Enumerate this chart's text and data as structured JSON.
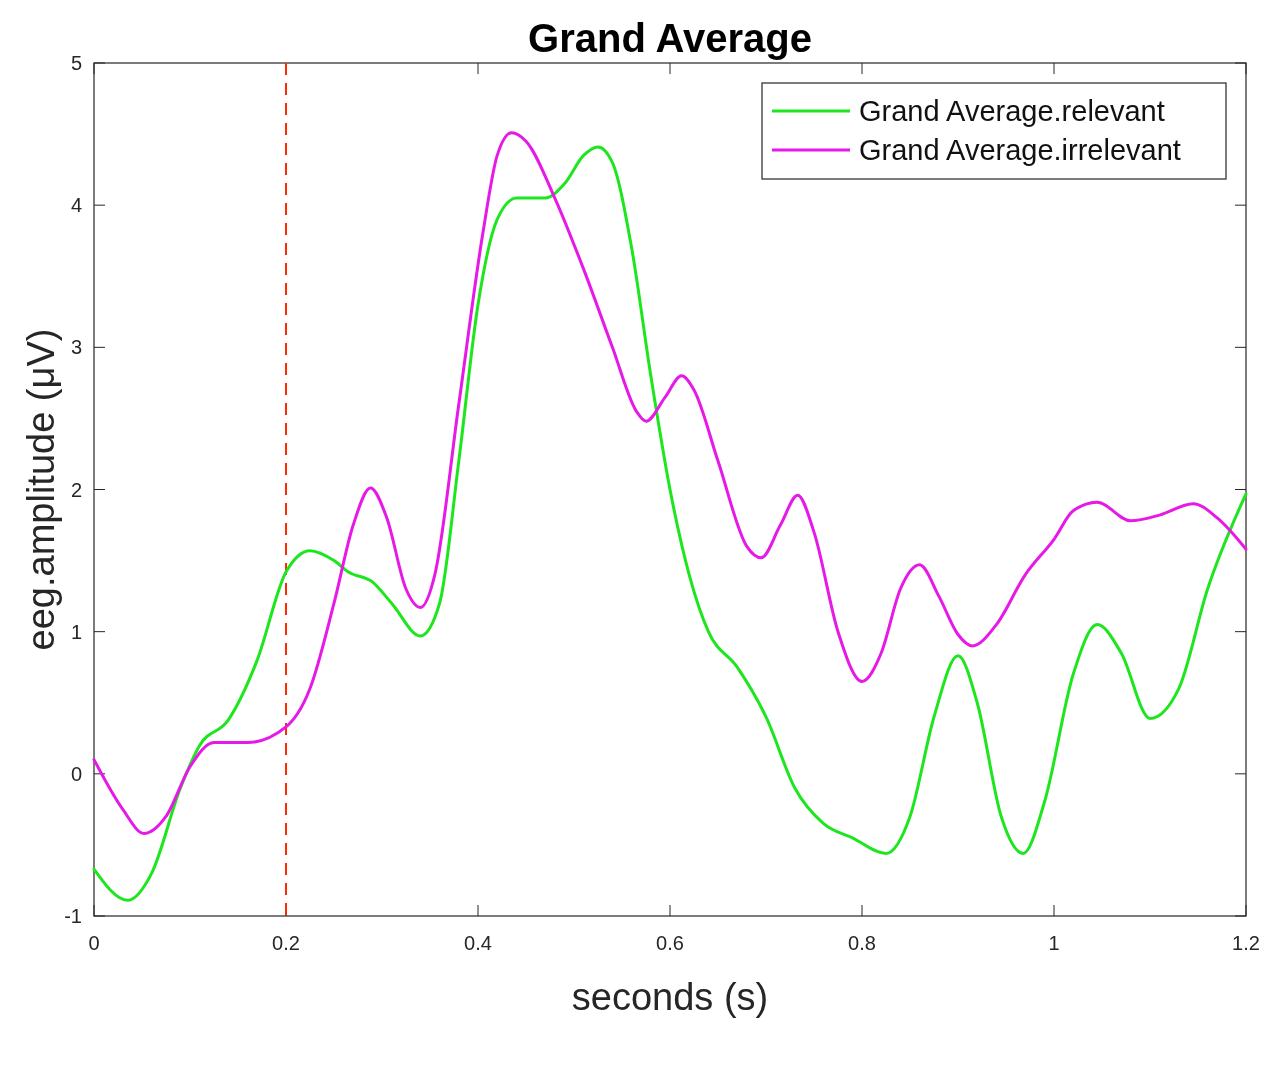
{
  "chart_data": {
    "type": "line",
    "title": "Grand Average",
    "xlabel": "seconds (s)",
    "ylabel": "eeg.amplitude (μV)",
    "xlim": [
      0,
      1.2
    ],
    "xticks": [
      0,
      0.2,
      0.4,
      0.6,
      0.8,
      1,
      1.2
    ],
    "ylim": [
      -1,
      5
    ],
    "yticks": [
      -1,
      0,
      1,
      2,
      3,
      4,
      5
    ],
    "grid": false,
    "legend": "top right",
    "line_style": "solid",
    "marker": "none",
    "ref_lines": [
      {
        "axis": "x",
        "value": 0.2,
        "color": "#ff2a00",
        "line_style": "dashed"
      }
    ],
    "series": [
      {
        "name": "Grand Average.relevant",
        "color": "#1ee61e",
        "x": [
          0,
          0.035,
          0.06,
          0.09,
          0.11,
          0.14,
          0.17,
          0.2,
          0.225,
          0.25,
          0.265,
          0.29,
          0.31,
          0.34,
          0.36,
          0.38,
          0.4,
          0.42,
          0.44,
          0.47,
          0.49,
          0.51,
          0.525,
          0.54,
          0.56,
          0.58,
          0.6,
          0.62,
          0.64,
          0.67,
          0.7,
          0.73,
          0.76,
          0.79,
          0.825,
          0.85,
          0.875,
          0.9,
          0.92,
          0.945,
          0.968,
          0.99,
          1.02,
          1.045,
          1.07,
          1.1,
          1.13,
          1.16,
          1.2
        ],
        "values": [
          -0.67,
          -0.89,
          -0.7,
          -0.1,
          0.2,
          0.38,
          0.8,
          1.42,
          1.57,
          1.5,
          1.42,
          1.35,
          1.2,
          0.97,
          1.2,
          2.2,
          3.3,
          3.9,
          4.05,
          4.05,
          4.15,
          4.35,
          4.41,
          4.3,
          3.7,
          2.8,
          2.0,
          1.4,
          1.0,
          0.75,
          0.4,
          -0.1,
          -0.35,
          -0.45,
          -0.56,
          -0.3,
          0.4,
          0.83,
          0.5,
          -0.3,
          -0.56,
          -0.2,
          0.7,
          1.05,
          0.85,
          0.39,
          0.6,
          1.3,
          1.97
        ]
      },
      {
        "name": "Grand Average.irrelevant",
        "color": "#e619e6",
        "x": [
          0,
          0.03,
          0.052,
          0.075,
          0.1,
          0.125,
          0.16,
          0.2,
          0.225,
          0.25,
          0.27,
          0.288,
          0.305,
          0.325,
          0.34,
          0.355,
          0.38,
          0.405,
          0.42,
          0.435,
          0.45,
          0.48,
          0.51,
          0.54,
          0.565,
          0.575,
          0.595,
          0.612,
          0.625,
          0.65,
          0.68,
          0.695,
          0.715,
          0.733,
          0.75,
          0.775,
          0.8,
          0.82,
          0.84,
          0.86,
          0.88,
          0.9,
          0.915,
          0.94,
          0.97,
          1.0,
          1.02,
          1.045,
          1.08,
          1.11,
          1.145,
          1.17,
          1.2
        ],
        "values": [
          0.1,
          -0.25,
          -0.42,
          -0.3,
          0.05,
          0.22,
          0.22,
          0.33,
          0.6,
          1.2,
          1.75,
          2.01,
          1.8,
          1.3,
          1.17,
          1.4,
          2.6,
          3.8,
          4.35,
          4.51,
          4.45,
          4.05,
          3.55,
          3.0,
          2.55,
          2.48,
          2.65,
          2.8,
          2.7,
          2.2,
          1.6,
          1.52,
          1.75,
          1.96,
          1.7,
          1.0,
          0.65,
          0.85,
          1.3,
          1.47,
          1.25,
          0.98,
          0.9,
          1.05,
          1.4,
          1.65,
          1.85,
          1.91,
          1.78,
          1.82,
          1.9,
          1.8,
          1.58
        ]
      }
    ]
  }
}
